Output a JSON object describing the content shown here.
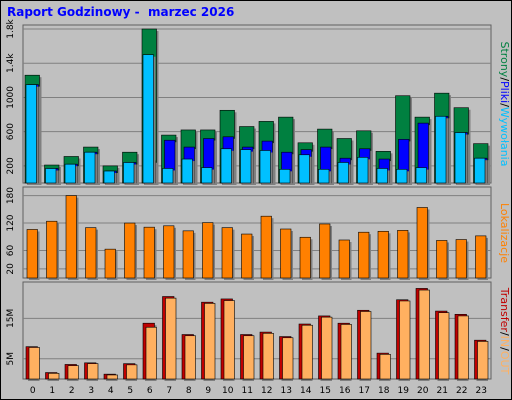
{
  "title": "Raport Godzinowy -  marzec 2026",
  "colors": {
    "background": "#c0c0c0",
    "title": "#0000ff",
    "strony": "#008040",
    "pliki": "#0000ff",
    "wywolania": "#00c0ff",
    "lokalizacje": "#ff8000",
    "transfer_in": "#c00000",
    "transfer_out": "#ffb060"
  },
  "chart_data": [
    {
      "type": "bar",
      "panel": "top",
      "categories": [
        "0",
        "1",
        "2",
        "3",
        "4",
        "5",
        "6",
        "7",
        "8",
        "9",
        "10",
        "11",
        "12",
        "13",
        "14",
        "15",
        "16",
        "17",
        "18",
        "19",
        "20",
        "21",
        "22",
        "23"
      ],
      "series": [
        {
          "name": "Strony",
          "values": [
            1260,
            210,
            310,
            420,
            200,
            360,
            1800,
            560,
            620,
            620,
            850,
            660,
            720,
            770,
            470,
            630,
            520,
            610,
            370,
            1020,
            770,
            1050,
            880,
            460
          ]
        },
        {
          "name": "Pliki",
          "values": [
            1150,
            170,
            220,
            360,
            140,
            240,
            260,
            500,
            420,
            520,
            540,
            420,
            490,
            360,
            390,
            420,
            290,
            400,
            280,
            510,
            700,
            780,
            590,
            290
          ]
        },
        {
          "name": "Wywołania",
          "values": [
            1150,
            170,
            220,
            360,
            140,
            240,
            1500,
            170,
            280,
            180,
            400,
            390,
            380,
            160,
            330,
            160,
            240,
            300,
            170,
            160,
            180,
            780,
            590,
            290
          ]
        }
      ],
      "ylim": [
        0,
        1800
      ],
      "yticks": [
        "200",
        "600",
        "1000",
        "1.4k",
        "1.8k"
      ],
      "side_label": [
        "Strony",
        "Pliki",
        "Wywołania"
      ]
    },
    {
      "type": "bar",
      "panel": "middle",
      "categories": [
        "0",
        "1",
        "2",
        "3",
        "4",
        "5",
        "6",
        "7",
        "8",
        "9",
        "10",
        "11",
        "12",
        "13",
        "14",
        "15",
        "16",
        "17",
        "18",
        "19",
        "20",
        "21",
        "22",
        "23"
      ],
      "series": [
        {
          "name": "Lokalizacje",
          "values": [
            106,
            124,
            180,
            110,
            63,
            120,
            111,
            114,
            103,
            121,
            110,
            96,
            135,
            107,
            89,
            118,
            83,
            100,
            102,
            104,
            154,
            82,
            84,
            92
          ]
        }
      ],
      "ylim": [
        0,
        190
      ],
      "yticks": [
        "20",
        "60",
        "120",
        "180"
      ],
      "side_label": "Lokalizacje"
    },
    {
      "type": "bar",
      "panel": "bottom",
      "categories": [
        "0",
        "1",
        "2",
        "3",
        "4",
        "5",
        "6",
        "7",
        "8",
        "9",
        "10",
        "11",
        "12",
        "13",
        "14",
        "15",
        "16",
        "17",
        "18",
        "19",
        "20",
        "21",
        "22",
        "23"
      ],
      "series": [
        {
          "name": "Transfer",
          "values": [
            8.0,
            1.6,
            3.6,
            4.0,
            1.2,
            3.8,
            13.8,
            20.4,
            11.0,
            19.0,
            19.8,
            11.0,
            11.6,
            10.5,
            13.6,
            15.6,
            13.8,
            17.0,
            6.4,
            19.6,
            22.4,
            16.8,
            16.0,
            9.6
          ]
        },
        {
          "name": "OUT",
          "values": [
            7.8,
            1.4,
            3.3,
            3.8,
            1.0,
            3.5,
            12.8,
            20.0,
            10.7,
            18.7,
            19.4,
            10.7,
            11.3,
            10.2,
            13.3,
            15.3,
            13.5,
            16.7,
            6.1,
            19.3,
            22.0,
            16.4,
            15.6,
            9.3
          ]
        }
      ],
      "ylim": [
        0,
        23
      ],
      "yticks": [
        "5M",
        "15M"
      ],
      "side_label": [
        "Transfer",
        "IN",
        "OUT"
      ]
    }
  ]
}
